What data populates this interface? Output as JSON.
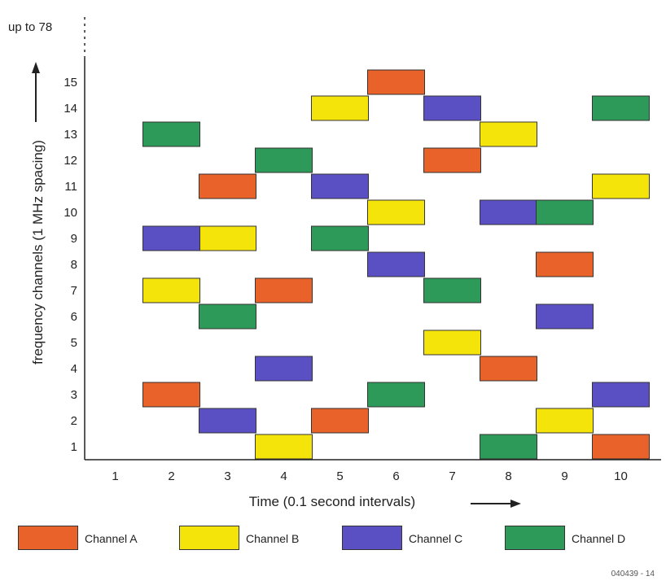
{
  "chart_data": {
    "type": "scatter",
    "xlabel": "Time (0.1 second intervals)",
    "ylabel": "frequency channels (1 MHz spacing)",
    "y_overflow_label": "up to 78",
    "x_ticks": [
      "1",
      "2",
      "3",
      "4",
      "5",
      "6",
      "7",
      "8",
      "9",
      "10"
    ],
    "y_ticks": [
      "1",
      "2",
      "3",
      "4",
      "5",
      "6",
      "7",
      "8",
      "9",
      "10",
      "11",
      "12",
      "13",
      "14",
      "15"
    ],
    "xlim": [
      1,
      10
    ],
    "ylim": [
      1,
      15
    ],
    "series": [
      {
        "name": "Channel A",
        "color": "#e8622a",
        "points": [
          {
            "x": 2,
            "y": 3
          },
          {
            "x": 3,
            "y": 11
          },
          {
            "x": 4,
            "y": 7
          },
          {
            "x": 5,
            "y": 2
          },
          {
            "x": 6,
            "y": 15
          },
          {
            "x": 7,
            "y": 12
          },
          {
            "x": 8,
            "y": 4
          },
          {
            "x": 9,
            "y": 8
          },
          {
            "x": 10,
            "y": 1
          }
        ]
      },
      {
        "name": "Channel B",
        "color": "#f4e40a",
        "points": [
          {
            "x": 2,
            "y": 7
          },
          {
            "x": 3,
            "y": 9
          },
          {
            "x": 4,
            "y": 1
          },
          {
            "x": 5,
            "y": 14
          },
          {
            "x": 6,
            "y": 10
          },
          {
            "x": 7,
            "y": 5
          },
          {
            "x": 8,
            "y": 13
          },
          {
            "x": 9,
            "y": 2
          },
          {
            "x": 10,
            "y": 11
          }
        ]
      },
      {
        "name": "Channel C",
        "color": "#5b4fc4",
        "points": [
          {
            "x": 2,
            "y": 9
          },
          {
            "x": 3,
            "y": 2
          },
          {
            "x": 4,
            "y": 4
          },
          {
            "x": 5,
            "y": 11
          },
          {
            "x": 6,
            "y": 8
          },
          {
            "x": 7,
            "y": 14
          },
          {
            "x": 8,
            "y": 10
          },
          {
            "x": 9,
            "y": 6
          },
          {
            "x": 10,
            "y": 3
          }
        ]
      },
      {
        "name": "Channel D",
        "color": "#2e9a5a",
        "points": [
          {
            "x": 2,
            "y": 13
          },
          {
            "x": 3,
            "y": 6
          },
          {
            "x": 4,
            "y": 12
          },
          {
            "x": 5,
            "y": 9
          },
          {
            "x": 6,
            "y": 3
          },
          {
            "x": 7,
            "y": 7
          },
          {
            "x": 8,
            "y": 1
          },
          {
            "x": 9,
            "y": 10
          },
          {
            "x": 10,
            "y": 14
          }
        ]
      }
    ],
    "legend_placement": "bottom",
    "grid": false
  },
  "figure_id": "040439 - 14"
}
